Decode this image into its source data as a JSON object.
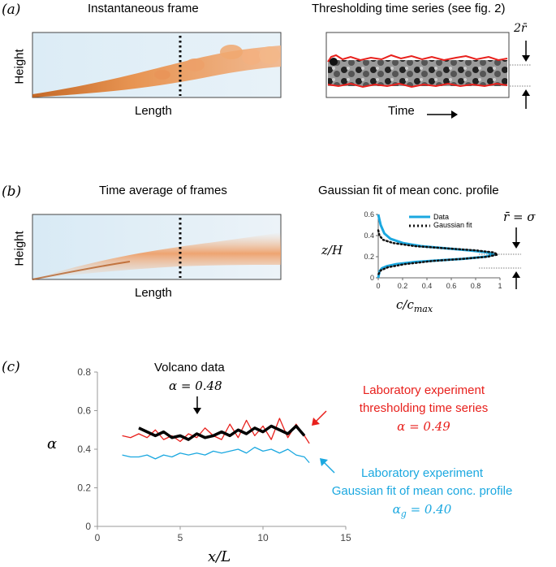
{
  "panel_a": {
    "label": "(a)",
    "left_title": "Instantaneous frame",
    "right_title": "Thresholding time series (see fig. 2)",
    "height_label": "Height",
    "length_label": "Length",
    "time_label": "Time",
    "radius_label": "2r̄"
  },
  "panel_b": {
    "label": "(b)",
    "left_title": "Time average of frames",
    "right_title": "Gaussian fit of mean conc. profile",
    "height_label": "Height",
    "length_label": "Length",
    "ylabel": "z/H",
    "xlabel": "c/c",
    "xlabel_sub": "max",
    "equation": "r̄ = σ",
    "legend_data": "Data",
    "legend_fit": "Gaussian fit",
    "colors": {
      "data": "#1ba8e0",
      "fit": "#111111"
    }
  },
  "panel_c": {
    "label": "(c)",
    "volcano_title": "Volcano data",
    "volcano_alpha": "α = 0.48",
    "lab_red_line1": "Laboratory experiment",
    "lab_red_line2": "thresholding time series",
    "lab_red_alpha": "α = 0.49",
    "lab_blue_line1": "Laboratory experiment",
    "lab_blue_line2": "Gaussian fit of mean conc. profile",
    "lab_blue_alpha": "α",
    "lab_blue_alpha_sub": "g",
    "lab_blue_alpha_val": " = 0.40",
    "ylabel": "α",
    "xlabel": "x/L",
    "colors": {
      "volcano": "#000000",
      "threshold": "#e8201c",
      "gaussian": "#1ba8e0"
    }
  },
  "chart_data": [
    {
      "type": "line",
      "title": "Gaussian fit of mean conc. profile",
      "xlabel": "c/c_max",
      "ylabel": "z/H",
      "xlim": [
        0,
        1
      ],
      "ylim": [
        0,
        0.6
      ],
      "xticks": [
        "0",
        "0.2",
        "0.4",
        "0.6",
        "0.8",
        "1"
      ],
      "yticks": [
        "0",
        "0.2",
        "0.4",
        "0.6"
      ],
      "series": [
        {
          "name": "Data",
          "x": [
            0.0,
            0.02,
            0.05,
            0.1,
            0.2,
            0.35,
            0.55,
            0.75,
            0.9,
            0.95,
            0.88,
            0.7,
            0.5,
            0.3,
            0.15,
            0.07,
            0.03,
            0.01,
            0.0
          ],
          "y": [
            0.6,
            0.5,
            0.42,
            0.37,
            0.33,
            0.3,
            0.28,
            0.26,
            0.24,
            0.22,
            0.2,
            0.18,
            0.165,
            0.15,
            0.13,
            0.11,
            0.09,
            0.06,
            0.0
          ]
        },
        {
          "name": "Gaussian fit",
          "x": [
            0.0,
            0.01,
            0.04,
            0.12,
            0.3,
            0.55,
            0.8,
            0.95,
            0.98,
            0.9,
            0.7,
            0.45,
            0.22,
            0.08,
            0.02,
            0.0
          ],
          "y": [
            0.45,
            0.4,
            0.36,
            0.33,
            0.3,
            0.28,
            0.26,
            0.24,
            0.22,
            0.2,
            0.18,
            0.16,
            0.13,
            0.1,
            0.07,
            0.03
          ]
        }
      ]
    },
    {
      "type": "line",
      "title": "",
      "xlabel": "x/L",
      "ylabel": "α",
      "xlim": [
        0,
        15
      ],
      "ylim": [
        0,
        0.8
      ],
      "xticks": [
        "0",
        "5",
        "10",
        "15"
      ],
      "yticks": [
        "0",
        "0.2",
        "0.4",
        "0.6",
        "0.8"
      ],
      "series": [
        {
          "name": "Volcano data",
          "x": [
            2.5,
            3.0,
            3.5,
            4.0,
            4.5,
            5.0,
            5.5,
            6.0,
            6.5,
            7.0,
            7.5,
            8.0,
            8.5,
            9.0,
            9.5,
            10.0,
            10.5,
            11.0,
            11.5,
            12.0,
            12.5
          ],
          "y": [
            0.51,
            0.49,
            0.47,
            0.49,
            0.46,
            0.47,
            0.45,
            0.48,
            0.46,
            0.47,
            0.49,
            0.47,
            0.5,
            0.48,
            0.51,
            0.49,
            0.52,
            0.5,
            0.48,
            0.52,
            0.47
          ]
        },
        {
          "name": "Thresholding time series",
          "x": [
            1.5,
            2.0,
            2.5,
            3.0,
            3.5,
            4.0,
            4.5,
            5.0,
            5.5,
            6.0,
            6.5,
            7.0,
            7.5,
            8.0,
            8.5,
            9.0,
            9.5,
            10.0,
            10.5,
            11.0,
            11.5,
            12.0,
            12.5,
            12.8
          ],
          "y": [
            0.47,
            0.46,
            0.48,
            0.46,
            0.5,
            0.45,
            0.47,
            0.44,
            0.48,
            0.46,
            0.51,
            0.47,
            0.45,
            0.53,
            0.46,
            0.55,
            0.47,
            0.52,
            0.45,
            0.56,
            0.46,
            0.53,
            0.47,
            0.43
          ]
        },
        {
          "name": "Gaussian fit of mean conc. profile",
          "x": [
            1.5,
            2.0,
            2.5,
            3.0,
            3.5,
            4.0,
            4.5,
            5.0,
            5.5,
            6.0,
            6.5,
            7.0,
            7.5,
            8.0,
            8.5,
            9.0,
            9.5,
            10.0,
            10.5,
            11.0,
            11.5,
            12.0,
            12.5,
            12.8
          ],
          "y": [
            0.37,
            0.36,
            0.36,
            0.37,
            0.35,
            0.37,
            0.36,
            0.38,
            0.37,
            0.38,
            0.37,
            0.39,
            0.38,
            0.39,
            0.4,
            0.38,
            0.41,
            0.39,
            0.4,
            0.38,
            0.4,
            0.37,
            0.36,
            0.33
          ]
        }
      ]
    }
  ]
}
